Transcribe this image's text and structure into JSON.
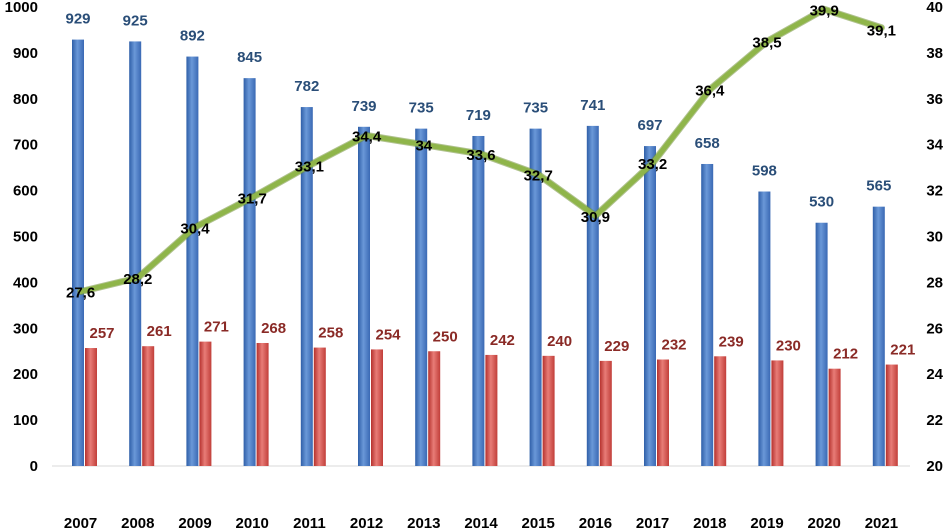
{
  "chart_data": {
    "type": "bar",
    "categories": [
      "2007",
      "2008",
      "2009",
      "2010",
      "2011",
      "2012",
      "2013",
      "2014",
      "2015",
      "2016",
      "2017",
      "2018",
      "2019",
      "2020",
      "2021"
    ],
    "series": [
      {
        "type": "bar",
        "axis": "left",
        "color": "#4a7bc4",
        "values": [
          929,
          925,
          892,
          845,
          782,
          739,
          735,
          719,
          735,
          741,
          697,
          658,
          598,
          530,
          565
        ]
      },
      {
        "type": "bar",
        "axis": "left",
        "color": "#cf4a45",
        "values": [
          257,
          261,
          271,
          268,
          258,
          254,
          250,
          242,
          240,
          229,
          232,
          239,
          230,
          212,
          221
        ]
      },
      {
        "type": "line",
        "axis": "right",
        "color": "#8fb54a",
        "values": [
          27.6,
          28.2,
          30.4,
          31.7,
          33.1,
          34.4,
          34,
          33.6,
          32.7,
          30.9,
          33.2,
          36.4,
          38.5,
          39.9,
          39.1
        ],
        "labels": [
          "27,6",
          "28,2",
          "30,4",
          "31,7",
          "33,1",
          "34,4",
          "34",
          "33,6",
          "32,7",
          "30,9",
          "33,2",
          "36,4",
          "38,5",
          "39,9",
          "39,1"
        ]
      }
    ],
    "y_left": {
      "ylim": [
        0,
        1000
      ],
      "ticks": [
        "0",
        "100",
        "200",
        "300",
        "400",
        "500",
        "600",
        "700",
        "800",
        "900",
        "1000"
      ]
    },
    "y_right": {
      "ylim": [
        20,
        40
      ],
      "ticks": [
        "20",
        "22",
        "24",
        "26",
        "28",
        "30",
        "32",
        "34",
        "36",
        "38",
        "40"
      ]
    },
    "grid": false,
    "legend": "none"
  }
}
